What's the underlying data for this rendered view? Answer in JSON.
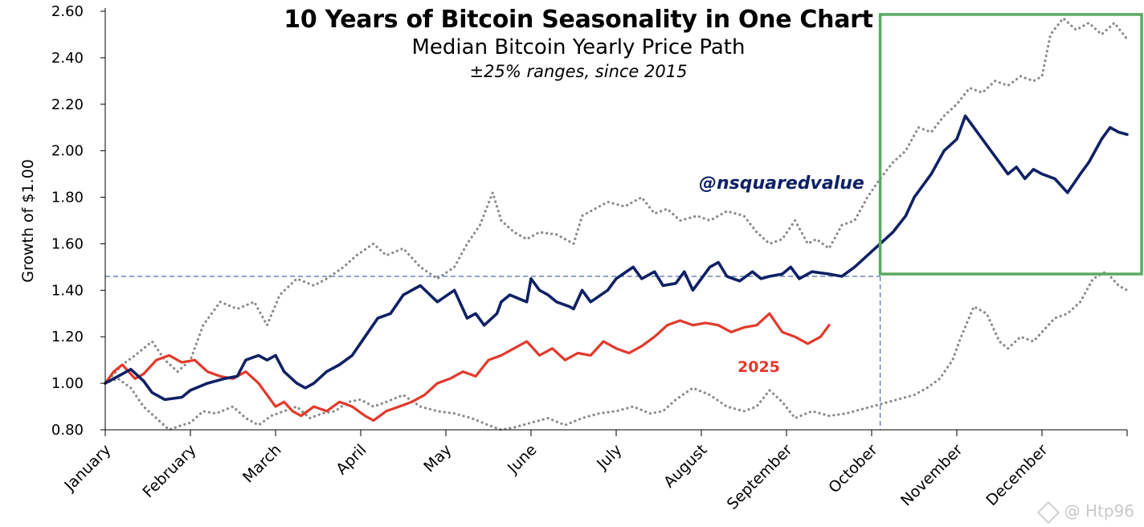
{
  "chart_data": {
    "type": "line",
    "title": "10 Years of Bitcoin Seasonality in One Chart",
    "subtitle": "Median Bitcoin Yearly Price Path",
    "subtitle2": "±25% ranges, since 2015",
    "annotation": "@nsquaredvalue",
    "ylabel": "Growth of $1.00",
    "xlabel": "",
    "ylim": [
      0.8,
      2.6
    ],
    "y_ticks": [
      "0.80",
      "1.00",
      "1.20",
      "1.40",
      "1.60",
      "1.80",
      "2.00",
      "2.20",
      "2.40",
      "2.60"
    ],
    "x_range_months": [
      0,
      12
    ],
    "categories": [
      "January",
      "February",
      "March",
      "April",
      "May",
      "June",
      "July",
      "August",
      "September",
      "October",
      "November",
      "December"
    ],
    "reference_level": 1.46,
    "reference_month": 9.1,
    "highlight_box": {
      "x_from_month": 9.1,
      "x_to_month": 12.2,
      "y_from": 1.47,
      "y_to": 2.6,
      "color": "#5aaa63"
    },
    "series": [
      {
        "name": "Median",
        "color": "#0f2165",
        "style": "solid",
        "x": [
          0,
          0.15,
          0.3,
          0.45,
          0.55,
          0.7,
          0.9,
          1.0,
          1.2,
          1.4,
          1.55,
          1.65,
          1.8,
          1.9,
          2.0,
          2.1,
          2.25,
          2.35,
          2.45,
          2.6,
          2.75,
          2.9,
          3.05,
          3.2,
          3.35,
          3.5,
          3.7,
          3.9,
          4.1,
          4.25,
          4.35,
          4.45,
          4.6,
          4.65,
          4.75,
          4.95,
          5.0,
          5.1,
          5.2,
          5.3,
          5.45,
          5.5,
          5.6,
          5.7,
          5.9,
          6.0,
          6.2,
          6.3,
          6.45,
          6.55,
          6.7,
          6.8,
          6.9,
          7.0,
          7.1,
          7.2,
          7.3,
          7.45,
          7.6,
          7.7,
          7.8,
          7.95,
          8.05,
          8.15,
          8.3,
          8.5,
          8.65,
          8.8,
          8.95,
          9.1,
          9.25,
          9.4,
          9.5,
          9.6,
          9.7,
          9.85,
          10.0,
          10.1,
          10.2,
          10.3,
          10.4,
          10.5,
          10.6,
          10.7,
          10.8,
          10.9,
          11.0,
          11.15,
          11.3,
          11.45,
          11.55,
          11.7,
          11.8,
          11.9,
          12.0
        ],
        "values": [
          1.0,
          1.03,
          1.06,
          1.01,
          0.96,
          0.93,
          0.94,
          0.97,
          1.0,
          1.02,
          1.03,
          1.1,
          1.12,
          1.1,
          1.12,
          1.05,
          1.0,
          0.98,
          1.0,
          1.05,
          1.08,
          1.12,
          1.2,
          1.28,
          1.3,
          1.38,
          1.42,
          1.35,
          1.4,
          1.28,
          1.3,
          1.25,
          1.3,
          1.35,
          1.38,
          1.35,
          1.45,
          1.4,
          1.38,
          1.35,
          1.33,
          1.32,
          1.4,
          1.35,
          1.4,
          1.45,
          1.5,
          1.45,
          1.48,
          1.42,
          1.43,
          1.48,
          1.4,
          1.45,
          1.5,
          1.52,
          1.46,
          1.44,
          1.48,
          1.45,
          1.46,
          1.47,
          1.5,
          1.45,
          1.48,
          1.47,
          1.46,
          1.5,
          1.55,
          1.6,
          1.65,
          1.72,
          1.8,
          1.85,
          1.9,
          2.0,
          2.05,
          2.15,
          2.1,
          2.05,
          2.0,
          1.95,
          1.9,
          1.93,
          1.88,
          1.92,
          1.9,
          1.88,
          1.82,
          1.9,
          1.95,
          2.05,
          2.1,
          2.08,
          2.07
        ]
      },
      {
        "name": "2025",
        "color": "#e3392b",
        "style": "solid",
        "x": [
          0,
          0.1,
          0.2,
          0.35,
          0.45,
          0.6,
          0.75,
          0.9,
          1.05,
          1.2,
          1.35,
          1.5,
          1.65,
          1.8,
          1.9,
          2.0,
          2.1,
          2.2,
          2.3,
          2.45,
          2.6,
          2.75,
          2.9,
          3.05,
          3.15,
          3.3,
          3.45,
          3.6,
          3.75,
          3.9,
          4.05,
          4.2,
          4.35,
          4.5,
          4.65,
          4.8,
          4.95,
          5.1,
          5.25,
          5.4,
          5.55,
          5.7,
          5.85,
          6.0,
          6.15,
          6.3,
          6.45,
          6.6,
          6.75,
          6.9,
          7.05,
          7.2,
          7.35,
          7.5,
          7.65,
          7.8,
          7.95,
          8.1,
          8.25,
          8.4,
          8.5
        ],
        "values": [
          1.0,
          1.05,
          1.08,
          1.02,
          1.04,
          1.1,
          1.12,
          1.09,
          1.1,
          1.05,
          1.03,
          1.02,
          1.05,
          1.0,
          0.95,
          0.9,
          0.92,
          0.88,
          0.86,
          0.9,
          0.88,
          0.92,
          0.9,
          0.86,
          0.84,
          0.88,
          0.9,
          0.92,
          0.95,
          1.0,
          1.02,
          1.05,
          1.03,
          1.1,
          1.12,
          1.15,
          1.18,
          1.12,
          1.15,
          1.1,
          1.13,
          1.12,
          1.18,
          1.15,
          1.13,
          1.16,
          1.2,
          1.25,
          1.27,
          1.25,
          1.26,
          1.25,
          1.22,
          1.24,
          1.25,
          1.3,
          1.22,
          1.2,
          1.17,
          1.2,
          1.25
        ]
      },
      {
        "name": "Upper range (+25%)",
        "color": "#8a8a8a",
        "style": "dotted",
        "x": [
          0,
          0.2,
          0.35,
          0.55,
          0.7,
          0.85,
          1.0,
          1.15,
          1.35,
          1.55,
          1.75,
          1.9,
          2.05,
          2.25,
          2.45,
          2.6,
          2.8,
          2.95,
          3.15,
          3.3,
          3.5,
          3.7,
          3.9,
          4.1,
          4.25,
          4.4,
          4.55,
          4.65,
          4.8,
          4.95,
          5.1,
          5.3,
          5.5,
          5.6,
          5.75,
          5.9,
          6.1,
          6.3,
          6.45,
          6.6,
          6.75,
          6.95,
          7.1,
          7.3,
          7.5,
          7.65,
          7.8,
          7.95,
          8.1,
          8.25,
          8.35,
          8.5,
          8.65,
          8.8,
          8.95,
          9.1,
          9.25,
          9.4,
          9.55,
          9.7,
          9.85,
          10.0,
          10.15,
          10.3,
          10.45,
          10.6,
          10.75,
          10.9,
          11.0,
          11.1,
          11.25,
          11.4,
          11.55,
          11.7,
          11.85,
          12.0
        ],
        "values": [
          1.0,
          1.08,
          1.12,
          1.18,
          1.1,
          1.05,
          1.1,
          1.25,
          1.35,
          1.32,
          1.35,
          1.25,
          1.38,
          1.45,
          1.42,
          1.45,
          1.5,
          1.55,
          1.6,
          1.55,
          1.58,
          1.5,
          1.45,
          1.5,
          1.6,
          1.68,
          1.82,
          1.7,
          1.65,
          1.62,
          1.65,
          1.64,
          1.6,
          1.72,
          1.75,
          1.78,
          1.76,
          1.8,
          1.73,
          1.75,
          1.7,
          1.72,
          1.7,
          1.74,
          1.72,
          1.65,
          1.6,
          1.62,
          1.7,
          1.6,
          1.62,
          1.58,
          1.68,
          1.7,
          1.8,
          1.88,
          1.95,
          2.0,
          2.1,
          2.08,
          2.15,
          2.2,
          2.27,
          2.25,
          2.3,
          2.28,
          2.32,
          2.3,
          2.32,
          2.5,
          2.57,
          2.52,
          2.55,
          2.5,
          2.55,
          2.48
        ]
      },
      {
        "name": "Lower range (-25%)",
        "color": "#8a8a8a",
        "style": "dotted",
        "x": [
          0,
          0.15,
          0.3,
          0.45,
          0.6,
          0.75,
          0.9,
          1.0,
          1.15,
          1.3,
          1.5,
          1.65,
          1.8,
          1.95,
          2.1,
          2.25,
          2.4,
          2.55,
          2.7,
          2.85,
          3.0,
          3.15,
          3.3,
          3.5,
          3.7,
          3.9,
          4.1,
          4.3,
          4.5,
          4.65,
          4.8,
          5.0,
          5.2,
          5.4,
          5.6,
          5.8,
          6.0,
          6.2,
          6.4,
          6.55,
          6.7,
          6.9,
          7.1,
          7.3,
          7.5,
          7.65,
          7.8,
          7.95,
          8.1,
          8.3,
          8.5,
          8.7,
          8.9,
          9.1,
          9.3,
          9.5,
          9.65,
          9.8,
          9.95,
          10.05,
          10.2,
          10.35,
          10.5,
          10.6,
          10.75,
          10.9,
          11.0,
          11.15,
          11.3,
          11.45,
          11.6,
          11.75,
          11.9,
          12.0
        ],
        "values": [
          1.0,
          1.02,
          0.98,
          0.9,
          0.85,
          0.8,
          0.82,
          0.83,
          0.88,
          0.87,
          0.9,
          0.85,
          0.82,
          0.86,
          0.88,
          0.9,
          0.85,
          0.87,
          0.88,
          0.92,
          0.93,
          0.9,
          0.92,
          0.95,
          0.9,
          0.88,
          0.87,
          0.85,
          0.82,
          0.8,
          0.81,
          0.83,
          0.85,
          0.82,
          0.85,
          0.87,
          0.88,
          0.9,
          0.87,
          0.88,
          0.93,
          0.98,
          0.95,
          0.9,
          0.88,
          0.9,
          0.97,
          0.92,
          0.85,
          0.88,
          0.86,
          0.87,
          0.89,
          0.91,
          0.93,
          0.95,
          0.98,
          1.02,
          1.1,
          1.2,
          1.33,
          1.3,
          1.18,
          1.15,
          1.2,
          1.18,
          1.22,
          1.28,
          1.3,
          1.35,
          1.45,
          1.48,
          1.42,
          1.4
        ]
      }
    ]
  },
  "watermark": {
    "text": "@ Htp96"
  }
}
